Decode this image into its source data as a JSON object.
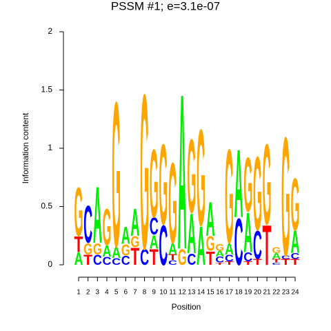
{
  "chart_data": {
    "type": "logo",
    "title": "PSSM #1; e=3.1e-07",
    "title_color": "#33ee33",
    "x_label": "Position",
    "y_label": "Information content",
    "xlim": [
      1,
      24
    ],
    "xticks": [
      1,
      2,
      3,
      4,
      5,
      6,
      7,
      8,
      9,
      10,
      11,
      12,
      13,
      14,
      15,
      16,
      17,
      18,
      19,
      20,
      21,
      22,
      23,
      24
    ],
    "ylim": [
      0,
      2
    ],
    "yticks": [
      0,
      0.5,
      1,
      1.5,
      2
    ],
    "letter_colors": {
      "A": "#00ee00",
      "C": "#0000ff",
      "G": "#ffa500",
      "T": "#ff0000"
    },
    "stacks": [
      [
        {
          "letter": "A",
          "height": 0.11
        },
        {
          "letter": "T",
          "height": 0.14
        },
        {
          "letter": "G",
          "height": 0.43
        }
      ],
      [
        {
          "letter": "T",
          "height": 0.09
        },
        {
          "letter": "G",
          "height": 0.1
        },
        {
          "letter": "C",
          "height": 0.33
        }
      ],
      [
        {
          "letter": "C",
          "height": 0.09
        },
        {
          "letter": "G",
          "height": 0.1
        },
        {
          "letter": "A",
          "height": 0.5
        }
      ],
      [
        {
          "letter": "C",
          "height": 0.07
        },
        {
          "letter": "A",
          "height": 0.1
        },
        {
          "letter": "G",
          "height": 0.32
        }
      ],
      [
        {
          "letter": "C",
          "height": 0.06
        },
        {
          "letter": "A",
          "height": 0.1
        },
        {
          "letter": "G",
          "height": 1.28
        }
      ],
      [
        {
          "letter": "C",
          "height": 0.08
        },
        {
          "letter": "G",
          "height": 0.1
        },
        {
          "letter": "A",
          "height": 0.15
        }
      ],
      [
        {
          "letter": "T",
          "height": 0.15
        },
        {
          "letter": "G",
          "height": 0.1
        },
        {
          "letter": "A",
          "height": 0.24
        }
      ],
      [
        {
          "letter": "C",
          "height": 0.14
        },
        {
          "letter": "G",
          "height": 1.37
        }
      ],
      [
        {
          "letter": "T",
          "height": 0.14
        },
        {
          "letter": "A",
          "height": 0.12
        },
        {
          "letter": "C",
          "height": 0.15
        },
        {
          "letter": "G",
          "height": 0.6
        }
      ],
      [
        {
          "letter": "C",
          "height": 0.35
        },
        {
          "letter": "G",
          "height": 0.71
        }
      ],
      [
        {
          "letter": "C",
          "height": 0.04
        },
        {
          "letter": "T",
          "height": 0.05
        },
        {
          "letter": "A",
          "height": 0.1
        },
        {
          "letter": "G",
          "height": 0.71
        }
      ],
      [
        {
          "letter": "G",
          "height": 0.14
        },
        {
          "letter": "A",
          "height": 1.37
        }
      ],
      [
        {
          "letter": "C",
          "height": 0.1
        },
        {
          "letter": "A",
          "height": 0.35
        },
        {
          "letter": "G",
          "height": 0.65
        }
      ],
      [
        {
          "letter": "A",
          "height": 0.34
        },
        {
          "letter": "G",
          "height": 0.85
        }
      ],
      [
        {
          "letter": "T",
          "height": 0.12
        },
        {
          "letter": "G",
          "height": 0.13
        },
        {
          "letter": "A",
          "height": 0.3
        }
      ],
      [
        {
          "letter": "T",
          "height": 0.02
        },
        {
          "letter": "C",
          "height": 0.05
        },
        {
          "letter": "A",
          "height": 0.05
        },
        {
          "letter": "G",
          "height": 0.06
        }
      ],
      [
        {
          "letter": "T",
          "height": 0.03
        },
        {
          "letter": "C",
          "height": 0.06
        },
        {
          "letter": "A",
          "height": 0.1
        },
        {
          "letter": "G",
          "height": 0.83
        }
      ],
      [
        {
          "letter": "C",
          "height": 0.41
        },
        {
          "letter": "A",
          "height": 0.6
        }
      ],
      [
        {
          "letter": "T",
          "height": 0.03
        },
        {
          "letter": "C",
          "height": 0.08
        },
        {
          "letter": "A",
          "height": 0.35
        },
        {
          "letter": "G",
          "height": 0.48
        }
      ],
      [
        {
          "letter": "T",
          "height": 0.05
        },
        {
          "letter": "C",
          "height": 0.25
        },
        {
          "letter": "G",
          "height": 0.65
        }
      ],
      [
        {
          "letter": "T",
          "height": 0.35
        },
        {
          "letter": "G",
          "height": 0.71
        }
      ],
      [
        {
          "letter": "C",
          "height": 0.02
        },
        {
          "letter": "T",
          "height": 0.03
        },
        {
          "letter": "A",
          "height": 0.05
        },
        {
          "letter": "G",
          "height": 0.05
        }
      ],
      [
        {
          "letter": "T",
          "height": 0.05
        },
        {
          "letter": "C",
          "height": 0.03
        },
        {
          "letter": "G",
          "height": 1.05
        }
      ],
      [
        {
          "letter": "T",
          "height": 0.05
        },
        {
          "letter": "C",
          "height": 0.05
        },
        {
          "letter": "A",
          "height": 0.2
        },
        {
          "letter": "G",
          "height": 0.46
        }
      ]
    ]
  }
}
